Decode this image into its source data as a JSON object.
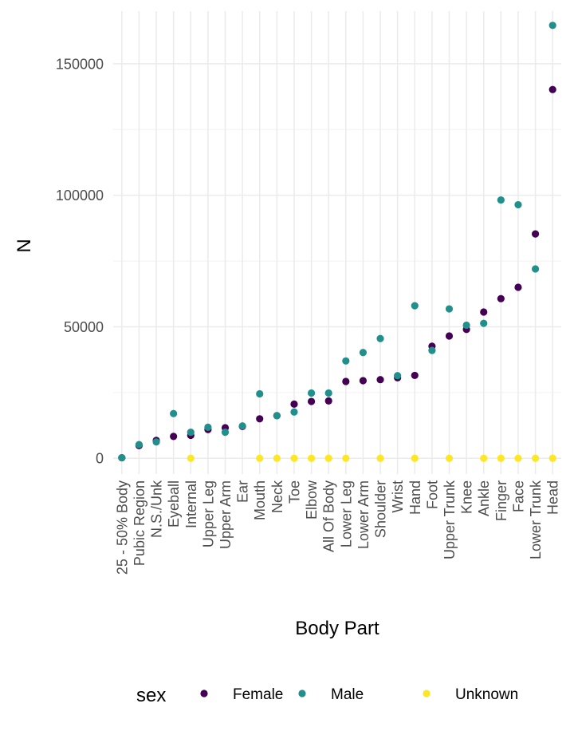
{
  "chart_data": {
    "type": "scatter",
    "xlabel": "Body Part",
    "ylabel": "N",
    "ylim": [
      -6000,
      170000
    ],
    "y_ticks": [
      0,
      50000,
      100000,
      150000
    ],
    "y_tick_labels": [
      "0",
      "50000",
      "100000",
      "150000"
    ],
    "grid": true,
    "legend_title": "sex",
    "legend_position": "bottom",
    "categories": [
      "25 - 50% Body",
      "Pubic Region",
      "N.S./Unk",
      "Eyeball",
      "Internal",
      "Upper Leg",
      "Upper Arm",
      "Ear",
      "Mouth",
      "Neck",
      "Toe",
      "Elbow",
      "All Of Body",
      "Lower Leg",
      "Lower Arm",
      "Shoulder",
      "Wrist",
      "Hand",
      "Foot",
      "Upper Trunk",
      "Knee",
      "Ankle",
      "Finger",
      "Face",
      "Lower Trunk",
      "Head"
    ],
    "series": [
      {
        "name": "Female",
        "color": "#440154",
        "values": [
          200,
          4800,
          6800,
          8300,
          8700,
          10900,
          11600,
          12100,
          15000,
          16200,
          20600,
          21600,
          21800,
          29200,
          29500,
          29900,
          30600,
          31500,
          42600,
          46500,
          49000,
          55600,
          60700,
          65000,
          85300,
          140200
        ]
      },
      {
        "name": "Male",
        "color": "#21908C",
        "values": [
          200,
          5200,
          6200,
          17000,
          9900,
          11800,
          9900,
          12300,
          24500,
          16200,
          17600,
          24800,
          24800,
          37000,
          40200,
          45500,
          31400,
          58000,
          41000,
          56800,
          50600,
          51300,
          98200,
          96400,
          72000,
          164600
        ]
      },
      {
        "name": "Unknown",
        "color": "#FDE725",
        "values": [
          null,
          null,
          null,
          null,
          0,
          null,
          null,
          null,
          0,
          0,
          0,
          0,
          0,
          0,
          null,
          0,
          null,
          0,
          null,
          0,
          null,
          0,
          0,
          0,
          0,
          0
        ]
      }
    ]
  }
}
